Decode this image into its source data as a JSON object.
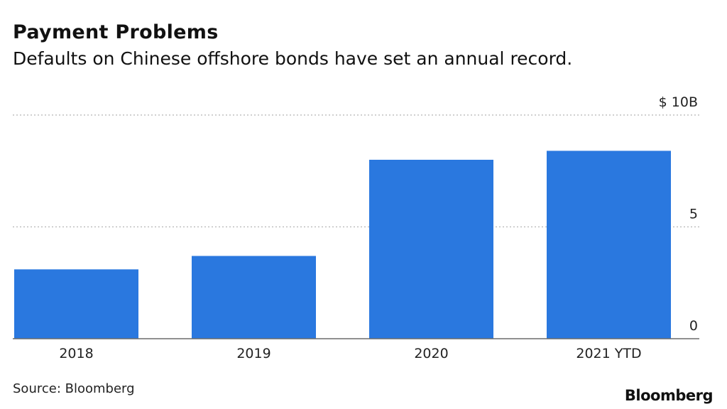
{
  "chart_data": {
    "type": "bar",
    "title": "Payment Problems",
    "subtitle": "Defaults on Chinese offshore bonds have set an annual record.",
    "categories": [
      "2018",
      "2019",
      "2020",
      "2021 YTD"
    ],
    "values": [
      3.1,
      3.7,
      8.0,
      8.4
    ],
    "ylim": [
      0,
      10
    ],
    "yticks": [
      {
        "value": 10,
        "label": "$ 10B"
      },
      {
        "value": 5,
        "label": "5"
      },
      {
        "value": 0,
        "label": "0"
      }
    ],
    "grid": true,
    "bar_color": "#2a78df",
    "grid_color": "#b5b5b5",
    "axis_color": "#6b6b6b"
  },
  "footer": {
    "source": "Source: Bloomberg",
    "brand": "Bloomberg"
  }
}
